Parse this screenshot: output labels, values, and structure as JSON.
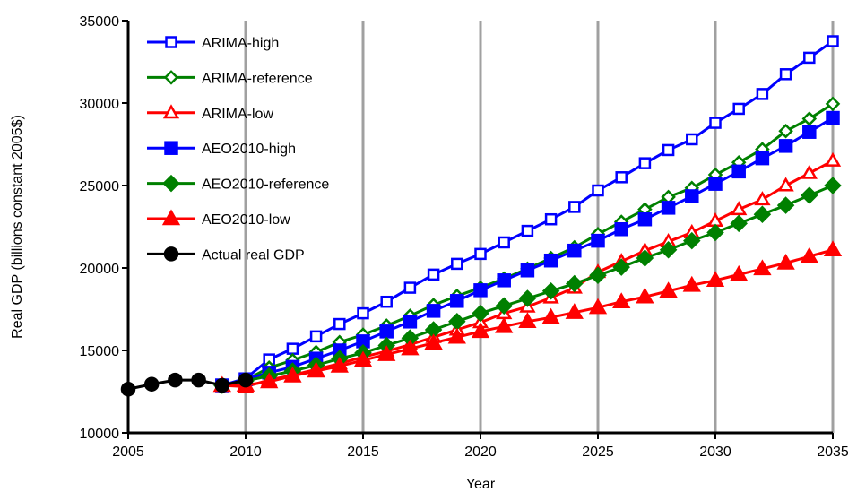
{
  "chart_data": {
    "type": "line",
    "title": "",
    "xlabel": "Year",
    "ylabel": "Real GDP (billions constant 2005$)",
    "xlim": [
      2005,
      2035
    ],
    "ylim": [
      10000,
      35000
    ],
    "xticks": [
      2005,
      2010,
      2015,
      2020,
      2025,
      2030,
      2035
    ],
    "yticks": [
      10000,
      15000,
      20000,
      25000,
      30000,
      35000
    ],
    "vertical_grid": true,
    "legend_position": "top-left",
    "series": [
      {
        "name": "ARIMA-high",
        "color": "#0000ff",
        "marker": "square-open",
        "x": [
          2009,
          2010,
          2011,
          2012,
          2013,
          2014,
          2015,
          2016,
          2017,
          2018,
          2019,
          2020,
          2021,
          2022,
          2023,
          2024,
          2025,
          2026,
          2027,
          2028,
          2029,
          2030,
          2031,
          2032,
          2033,
          2034,
          2035
        ],
        "y": [
          12880,
          13300,
          14450,
          15100,
          15850,
          16600,
          17250,
          17950,
          18800,
          19600,
          20250,
          20850,
          21550,
          22250,
          22950,
          23700,
          24700,
          25500,
          26350,
          27150,
          27800,
          28800,
          29650,
          30550,
          31750,
          32750,
          33750
        ]
      },
      {
        "name": "ARIMA-reference",
        "color": "#008000",
        "marker": "diamond-open",
        "x": [
          2009,
          2010,
          2011,
          2012,
          2013,
          2014,
          2015,
          2016,
          2017,
          2018,
          2019,
          2020,
          2021,
          2022,
          2023,
          2024,
          2025,
          2026,
          2027,
          2028,
          2029,
          2030,
          2031,
          2032,
          2033,
          2034,
          2035
        ],
        "y": [
          12880,
          13200,
          13950,
          14400,
          14900,
          15500,
          15950,
          16500,
          17100,
          17750,
          18300,
          18800,
          19350,
          19950,
          20600,
          21250,
          22050,
          22800,
          23550,
          24300,
          24850,
          25650,
          26400,
          27200,
          28300,
          29050,
          29950
        ]
      },
      {
        "name": "ARIMA-low",
        "color": "#ff0000",
        "marker": "triangle-open",
        "x": [
          2009,
          2010,
          2011,
          2012,
          2013,
          2014,
          2015,
          2016,
          2017,
          2018,
          2019,
          2020,
          2021,
          2022,
          2023,
          2024,
          2025,
          2026,
          2027,
          2028,
          2029,
          2030,
          2031,
          2032,
          2033,
          2034,
          2035
        ],
        "y": [
          12880,
          12800,
          13200,
          13500,
          13850,
          14200,
          14600,
          14950,
          15350,
          15800,
          16250,
          16700,
          17250,
          17650,
          18200,
          18800,
          19750,
          20400,
          21050,
          21600,
          22150,
          22850,
          23550,
          24150,
          25000,
          25750,
          26500
        ]
      },
      {
        "name": "AEO2010-high",
        "color": "#0000ff",
        "marker": "square-filled",
        "x": [
          2009,
          2010,
          2011,
          2012,
          2013,
          2014,
          2015,
          2016,
          2017,
          2018,
          2019,
          2020,
          2021,
          2022,
          2023,
          2024,
          2025,
          2026,
          2027,
          2028,
          2029,
          2030,
          2031,
          2032,
          2033,
          2034,
          2035
        ],
        "y": [
          12880,
          13250,
          13650,
          14000,
          14500,
          15000,
          15550,
          16150,
          16750,
          17400,
          18000,
          18650,
          19250,
          19850,
          20450,
          21050,
          21650,
          22350,
          22950,
          23650,
          24350,
          25100,
          25850,
          26650,
          27400,
          28250,
          29100
        ]
      },
      {
        "name": "AEO2010-reference",
        "color": "#008000",
        "marker": "diamond-filled",
        "x": [
          2009,
          2010,
          2011,
          2012,
          2013,
          2014,
          2015,
          2016,
          2017,
          2018,
          2019,
          2020,
          2021,
          2022,
          2023,
          2024,
          2025,
          2026,
          2027,
          2028,
          2029,
          2030,
          2031,
          2032,
          2033,
          2034,
          2035
        ],
        "y": [
          12880,
          13150,
          13450,
          13750,
          14100,
          14500,
          14850,
          15300,
          15750,
          16250,
          16750,
          17250,
          17700,
          18150,
          18600,
          19050,
          19550,
          20050,
          20600,
          21100,
          21650,
          22150,
          22700,
          23250,
          23800,
          24400,
          25000
        ]
      },
      {
        "name": "AEO2010-low",
        "color": "#ff0000",
        "marker": "triangle-filled",
        "x": [
          2009,
          2010,
          2011,
          2012,
          2013,
          2014,
          2015,
          2016,
          2017,
          2018,
          2019,
          2020,
          2021,
          2022,
          2023,
          2024,
          2025,
          2026,
          2027,
          2028,
          2029,
          2030,
          2031,
          2032,
          2033,
          2034,
          2035
        ],
        "y": [
          12880,
          12900,
          13100,
          13450,
          13750,
          14050,
          14400,
          14750,
          15100,
          15450,
          15800,
          16150,
          16450,
          16750,
          17000,
          17300,
          17600,
          17950,
          18250,
          18600,
          18950,
          19250,
          19600,
          19950,
          20300,
          20700,
          21100
        ]
      },
      {
        "name": "Actual real GDP",
        "color": "#000000",
        "marker": "circle-filled",
        "x": [
          2005,
          2006,
          2007,
          2008,
          2009,
          2010
        ],
        "y": [
          12650,
          12950,
          13200,
          13200,
          12880,
          13200
        ]
      }
    ]
  }
}
